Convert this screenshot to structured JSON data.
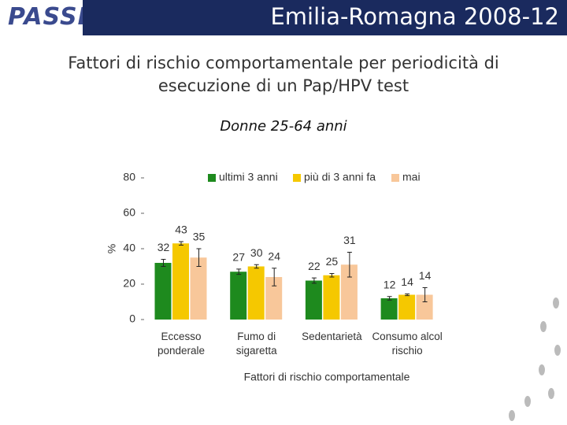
{
  "header": {
    "logo": "PASSI",
    "title": "Emilia-Romagna 2008-12"
  },
  "chart_data": {
    "type": "bar",
    "title": "Fattori di rischio comportamentale per periodicità di esecuzione di un Pap/HPV test",
    "subtitle": "Donne 25-64 anni",
    "y_label": "%",
    "x_label": "Fattori di rischio comportamentale",
    "categories": [
      "Eccesso ponderale",
      "Fumo di sigaretta",
      "Sedentarietà",
      "Consumo alcol rischio"
    ],
    "series": [
      {
        "name": "ultimi 3 anni",
        "color": "#1e8a1e",
        "values": [
          32,
          27,
          22,
          12
        ],
        "errors": [
          2,
          1.5,
          1.5,
          1
        ]
      },
      {
        "name": "più di 3 anni fa",
        "color": "#f5c800",
        "values": [
          43,
          30,
          25,
          14
        ],
        "errors": [
          1,
          1,
          1,
          0.5
        ]
      },
      {
        "name": "mai",
        "color": "#f8c79a",
        "values": [
          35,
          24,
          31,
          14
        ],
        "errors": [
          5,
          5,
          7,
          4
        ]
      }
    ],
    "ylim": [
      0,
      80
    ],
    "yticks": [
      0,
      20,
      40,
      60,
      80
    ],
    "legend": "top"
  }
}
